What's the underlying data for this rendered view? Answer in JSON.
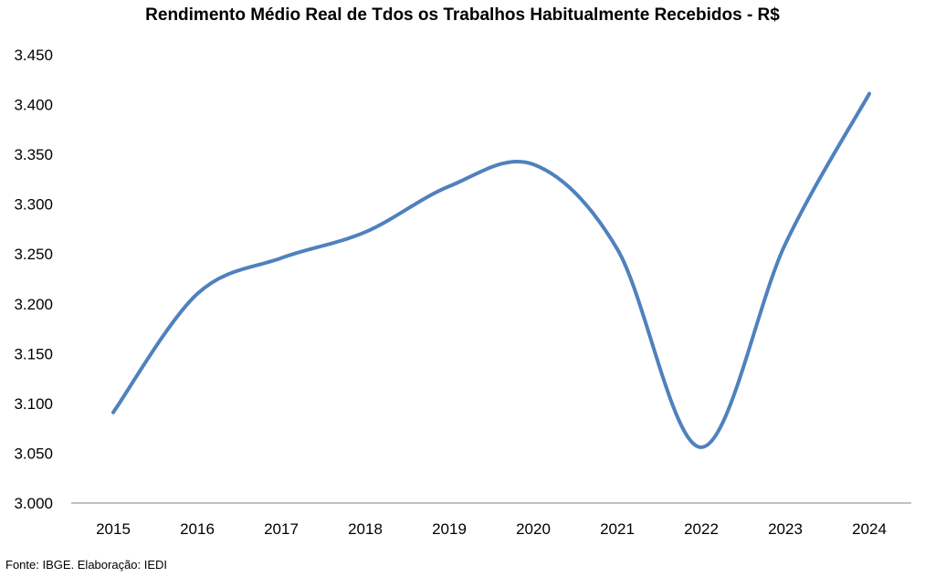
{
  "chart_data": {
    "type": "line",
    "title": "Rendimento Médio Real de Tdos os Trabalhos Habitualmente Recebidos - R$",
    "x": [
      "2015",
      "2016",
      "2017",
      "2018",
      "2019",
      "2020",
      "2021",
      "2022",
      "2023",
      "2024"
    ],
    "series": [
      {
        "values": [
          3091,
          3210,
          3246,
          3272,
          3318,
          3340,
          3255,
          3056,
          3260,
          3411
        ]
      }
    ],
    "ylim": [
      3000,
      3450
    ],
    "yticks": [
      "3.000",
      "3.050",
      "3.100",
      "3.150",
      "3.200",
      "3.250",
      "3.300",
      "3.350",
      "3.400",
      "3.450"
    ],
    "line_color": "#4f81bd",
    "grid": false,
    "source": "Fonte: IBGE. Elaboração: IEDI"
  }
}
